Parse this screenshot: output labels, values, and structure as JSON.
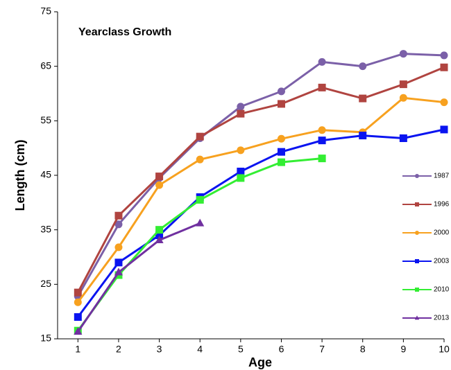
{
  "chart_data": {
    "type": "line",
    "title": "Yearclass Growth",
    "x_label": "Age",
    "y_label": "Length (cm)",
    "x": [
      1,
      2,
      3,
      4,
      5,
      6,
      7,
      8,
      9,
      10
    ],
    "xlim": [
      0.5,
      10
    ],
    "xticks": [
      1,
      2,
      3,
      4,
      5,
      6,
      7,
      8,
      9,
      10
    ],
    "ylim": [
      15,
      75
    ],
    "yticks": [
      15,
      25,
      35,
      45,
      55,
      65,
      75
    ],
    "grid": false,
    "legend": "right",
    "series": [
      {
        "name": "1987",
        "color": "#7b60a8",
        "marker": "circle",
        "values": [
          22.8,
          36,
          44.5,
          51.8,
          57.6,
          60.4,
          65.8,
          65,
          67.3,
          67
        ]
      },
      {
        "name": "1996",
        "color": "#b04440",
        "marker": "square",
        "values": [
          23.5,
          37.6,
          44.8,
          52.1,
          56.3,
          58.1,
          61.1,
          59.1,
          61.7,
          64.8
        ]
      },
      {
        "name": "2000",
        "color": "#f7a11f",
        "marker": "circle",
        "values": [
          21.7,
          31.8,
          43.2,
          47.9,
          49.6,
          51.7,
          53.3,
          52.9,
          59.2,
          58.4
        ]
      },
      {
        "name": "2003",
        "color": "#0a14f0",
        "marker": "square",
        "values": [
          19,
          29,
          34,
          41,
          45.7,
          49.3,
          51.4,
          52.3,
          51.8,
          53.4
        ]
      },
      {
        "name": "2010",
        "color": "#33ee33",
        "marker": "square",
        "values": [
          16.5,
          26.7,
          35,
          40.5,
          44.5,
          47.4,
          48.1,
          null,
          null,
          null
        ]
      },
      {
        "name": "2013",
        "color": "#7030a0",
        "marker": "triangle",
        "values": [
          16.3,
          27.2,
          33.1,
          36.2,
          null,
          null,
          null,
          null,
          null,
          null
        ]
      }
    ]
  }
}
